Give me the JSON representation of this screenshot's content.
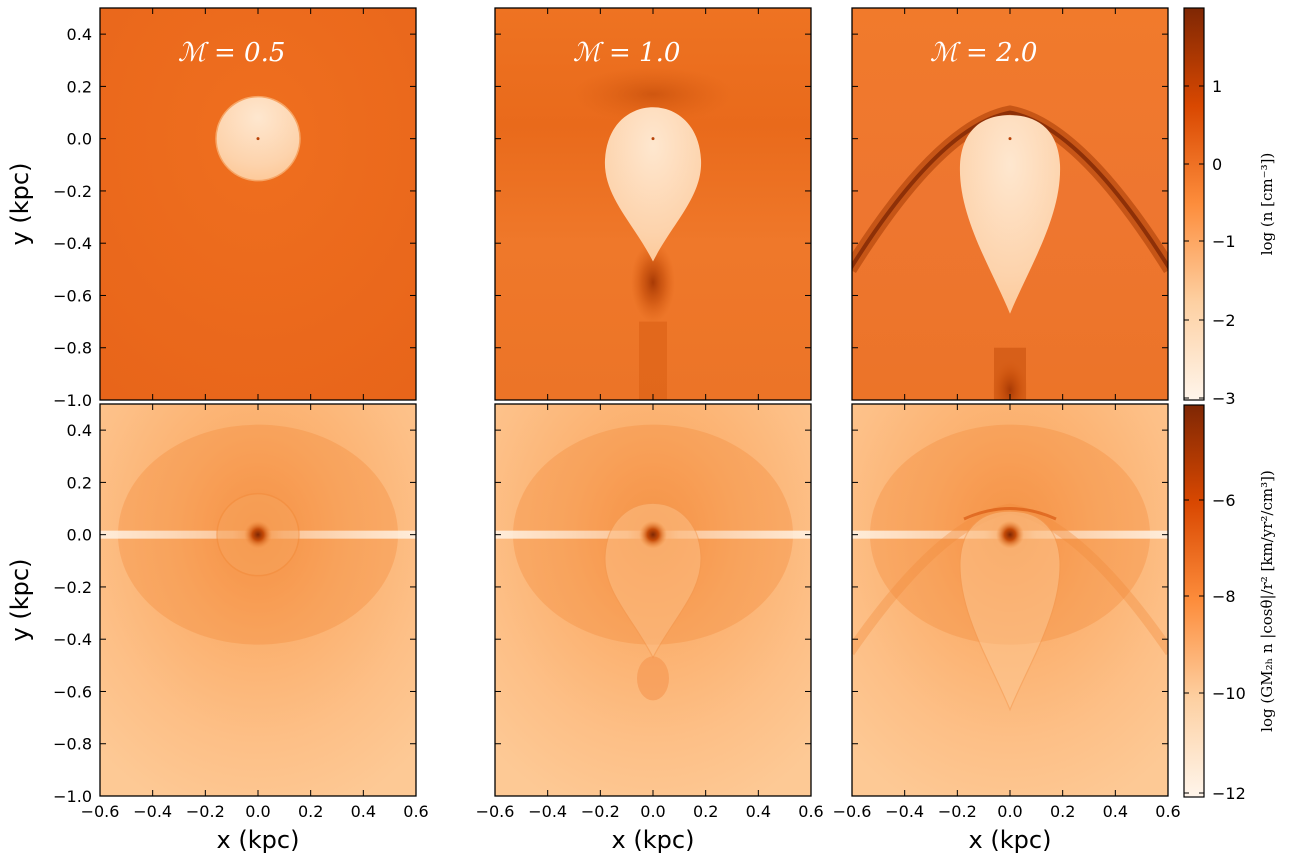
{
  "chart_data": {
    "type": "heatmap",
    "layout": "2 rows x 3 columns",
    "x_range": [
      -0.6,
      0.6
    ],
    "y_range": [
      -1.0,
      0.5
    ],
    "x_ticks": [
      "−0.6",
      "−0.4",
      "−0.2",
      "0.0",
      "0.2",
      "0.4",
      "0.6"
    ],
    "y_ticks": [
      "0.4",
      "0.2",
      "0.0",
      "−0.2",
      "−0.4",
      "−0.6",
      "−0.8",
      "−1.0"
    ],
    "xlabel": "x (kpc)",
    "ylabel": "y (kpc)",
    "columns": [
      {
        "annotation": "ℳ = 0.5",
        "mach": 0.5
      },
      {
        "annotation": "ℳ = 1.0",
        "mach": 1.0
      },
      {
        "annotation": "ℳ = 2.0",
        "mach": 2.0
      }
    ],
    "rows": [
      {
        "quantity": "density",
        "colorbar_label": "log (n [cm⁻³])",
        "colorbar_range": [
          -3,
          2
        ],
        "colorbar_ticks": [
          "1",
          "0",
          "−1",
          "−2",
          "−3"
        ],
        "colormap": "Oranges"
      },
      {
        "quantity": "gravitational force density",
        "colorbar_label": "log (GM₂ₕ n |cosθ|/r² [km/yr²/cm³])",
        "colorbar_range": [
          -12,
          -4
        ],
        "colorbar_ticks": [
          "−6",
          "−8",
          "−10",
          "−12"
        ],
        "colormap": "Oranges"
      }
    ]
  },
  "colors": {
    "cmap_dark": "#7f2704",
    "cmap_mid": "#e6550d",
    "cmap_light": "#fff5eb",
    "annotation": "#ffffff"
  }
}
